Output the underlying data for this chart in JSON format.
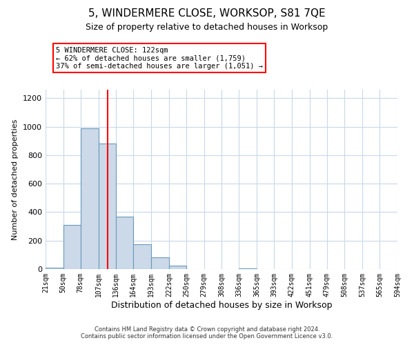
{
  "title": "5, WINDERMERE CLOSE, WORKSOP, S81 7QE",
  "subtitle": "Size of property relative to detached houses in Worksop",
  "xlabel": "Distribution of detached houses by size in Worksop",
  "ylabel": "Number of detached properties",
  "bin_edges": [
    21,
    50,
    78,
    107,
    136,
    164,
    193,
    222,
    250,
    279,
    308,
    336,
    365,
    393,
    422,
    451,
    479,
    508,
    537,
    565,
    594
  ],
  "bar_heights": [
    10,
    310,
    990,
    880,
    370,
    175,
    80,
    25,
    0,
    0,
    0,
    5,
    0,
    0,
    0,
    0,
    0,
    0,
    0,
    0
  ],
  "bar_color": "#ccd9e8",
  "bar_edge_color": "#6699bb",
  "red_line_x": 122,
  "ylim": [
    0,
    1260
  ],
  "yticks": [
    0,
    200,
    400,
    600,
    800,
    1000,
    1200
  ],
  "annotation_line1": "5 WINDERMERE CLOSE: 122sqm",
  "annotation_line2": "← 62% of detached houses are smaller (1,759)",
  "annotation_line3": "37% of semi-detached houses are larger (1,051) →",
  "footer_line1": "Contains HM Land Registry data © Crown copyright and database right 2024.",
  "footer_line2": "Contains public sector information licensed under the Open Government Licence v3.0.",
  "background_color": "#ffffff",
  "grid_color": "#c8d8e8"
}
